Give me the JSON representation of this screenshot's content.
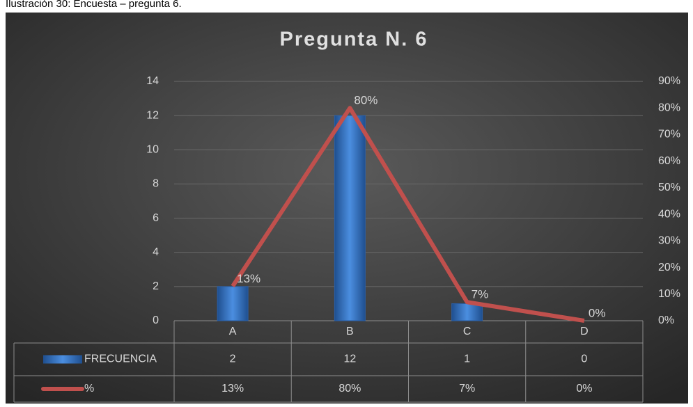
{
  "caption": "Ilustración 30: Encuesta – pregunta 6.",
  "chart_data": {
    "type": "bar",
    "title": "Pregunta N. 6",
    "categories": [
      "A",
      "B",
      "C",
      "D"
    ],
    "series": [
      {
        "name": "FRECUENCIA",
        "color": "#3f7fd0",
        "values": [
          2,
          12,
          1,
          0
        ]
      },
      {
        "name": "%",
        "color": "#c0504d",
        "type": "line",
        "axis": "y2",
        "values": [
          13,
          80,
          7,
          0
        ],
        "value_labels": [
          "13%",
          "80%",
          "7%",
          "0%"
        ]
      }
    ],
    "ylim": [
      0,
      14
    ],
    "yticks": [
      0,
      2,
      4,
      6,
      8,
      10,
      12,
      14
    ],
    "y2lim": [
      0,
      90
    ],
    "y2ticks": [
      {
        "value": 0,
        "label": "0%"
      },
      {
        "value": 10,
        "label": "10%"
      },
      {
        "value": 20,
        "label": "20%"
      },
      {
        "value": 30,
        "label": "30%"
      },
      {
        "value": 40,
        "label": "40%"
      },
      {
        "value": 50,
        "label": "50%"
      },
      {
        "value": 60,
        "label": "60%"
      },
      {
        "value": 70,
        "label": "70%"
      },
      {
        "value": 80,
        "label": "80%"
      },
      {
        "value": 90,
        "label": "90%"
      }
    ],
    "grid": true,
    "data_table": true
  }
}
